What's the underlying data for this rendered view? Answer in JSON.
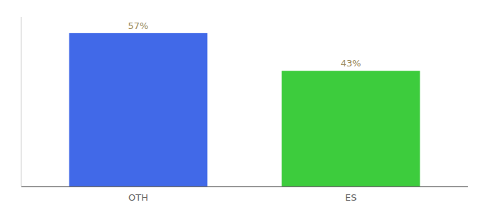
{
  "chart_data": {
    "type": "bar",
    "categories": [
      "OTH",
      "ES"
    ],
    "values": [
      57,
      43
    ],
    "value_labels": [
      "57%",
      "43%"
    ],
    "colors": [
      "#4169e8",
      "#3dcc3d"
    ],
    "ylim": [
      0,
      63
    ],
    "data_labels": true,
    "tick_labels": "x",
    "grid": false
  }
}
